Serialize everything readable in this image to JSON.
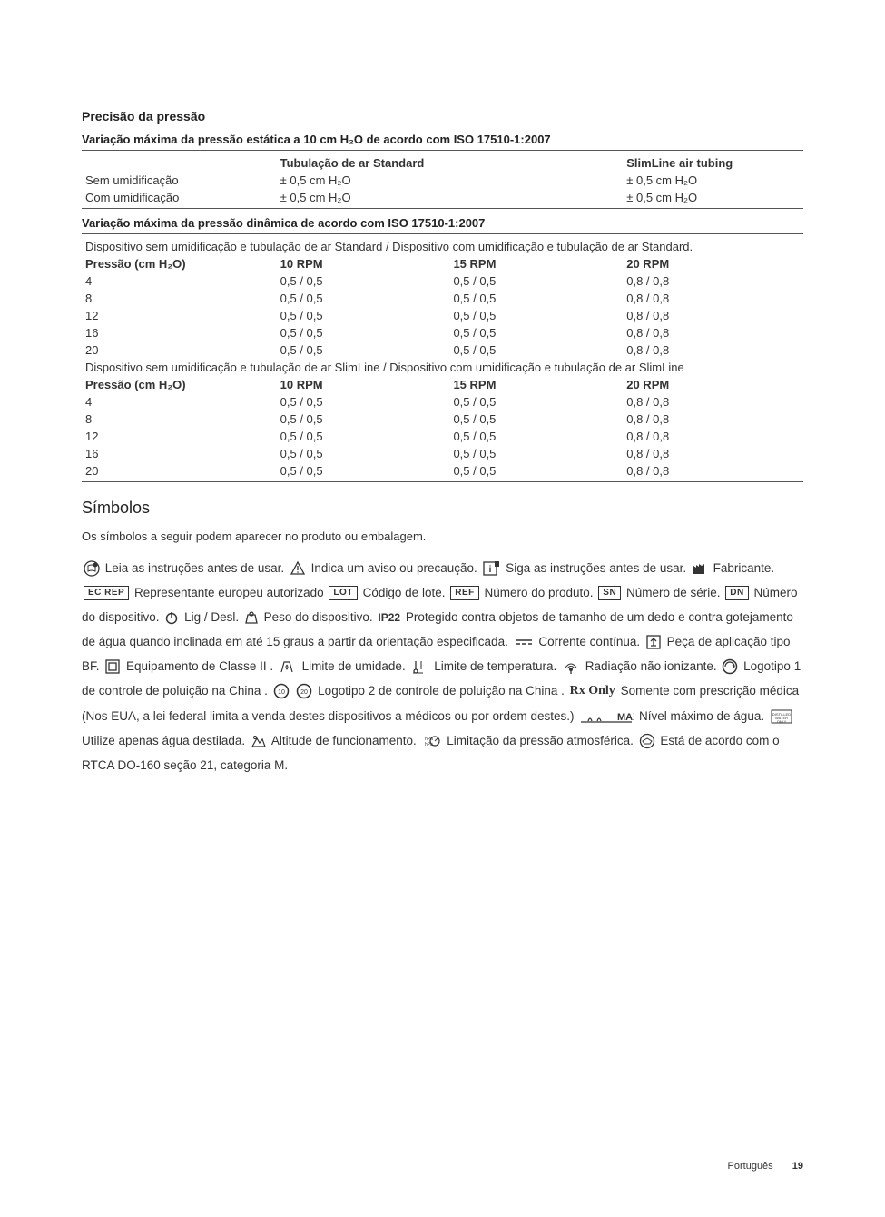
{
  "section_title": "Precisão da pressão",
  "static_title": "Variação máxima da pressão estática a 10 cm H₂O de acordo com ISO 17510-1:2007",
  "static_table": {
    "col_headers": [
      "",
      "Tubulação de ar Standard",
      "SlimLine air tubing"
    ],
    "rows": [
      [
        "Sem umidificação",
        "± 0,5 cm H₂O",
        "± 0,5 cm H₂O"
      ],
      [
        "Com umidificação",
        "± 0,5 cm H₂O",
        "± 0,5 cm H₂O"
      ]
    ]
  },
  "dynamic_title": "Variação máxima da pressão dinâmica de acordo com ISO 17510-1:2007",
  "dyn_note1": "Dispositivo sem umidificação e tubulação de ar Standard / Dispositivo com umidificação e tubulação de ar Standard.",
  "dyn_note2": "Dispositivo sem umidificação  e tubulação de ar SlimLine / Dispositivo com umidificação e tubulação de ar SlimLine",
  "dyn_headers": [
    "Pressão (cm H₂O)",
    "10 RPM",
    "15 RPM",
    "20 RPM"
  ],
  "dyn_rows1": [
    [
      "4",
      "0,5 / 0,5",
      "0,5 / 0,5",
      "0,8 / 0,8"
    ],
    [
      "8",
      "0,5 / 0,5",
      "0,5 / 0,5",
      "0,8 / 0,8"
    ],
    [
      "12",
      "0,5 / 0,5",
      "0,5 / 0,5",
      "0,8 / 0,8"
    ],
    [
      "16",
      "0,5 / 0,5",
      "0,5 / 0,5",
      "0,8 / 0,8"
    ],
    [
      "20",
      "0,5 / 0,5",
      "0,5 / 0,5",
      "0,8 / 0,8"
    ]
  ],
  "dyn_rows2": [
    [
      "4",
      "0,5 / 0,5",
      "0,5 / 0,5",
      "0,8 / 0,8"
    ],
    [
      "8",
      "0,5 / 0,5",
      "0,5 / 0,5",
      "0,8 / 0,8"
    ],
    [
      "12",
      "0,5 / 0,5",
      "0,5 / 0,5",
      "0,8 / 0,8"
    ],
    [
      "16",
      "0,5 / 0,5",
      "0,5 / 0,5",
      "0,8 / 0,8"
    ],
    [
      "20",
      "0,5 / 0,5",
      "0,5 / 0,5",
      "0,8 / 0,8"
    ]
  ],
  "symbols_title": "Símbolos",
  "symbols_intro": "Os símbolos a seguir podem aparecer no produto ou embalagem.",
  "symtext": {
    "t1": " Leia as instruções antes de usar. ",
    "t2": " Indica um aviso ou precaução. ",
    "t3": " Siga as instruções antes de usar. ",
    "t4": " Fabricante. ",
    "t5": " Representante europeu autorizado ",
    "t6": " Código de lote. ",
    "t7": " Número do produto. ",
    "t8": " Número de série. ",
    "t9": " Número do dispositivo. ",
    "t10": " Lig / Desl. ",
    "t11": " Peso do dispositivo. ",
    "t12": " Protegido contra objetos de tamanho de um dedo e contra gotejamento de água quando inclinada em até 15 graus a partir da orientação especificada. ",
    "t13": " Corrente contínua. ",
    "t14": " Peça de aplicação tipo BF. ",
    "t15": " Equipamento de Classe II .",
    "t16": " Limite de umidade. ",
    "t17": " Limite de temperatura. ",
    "t18": " Radiação não ionizante. ",
    "t19": " Logotipo 1 de controle de poluição na China . ",
    "t20": " Logotipo 2 de controle de poluição na China . ",
    "t21": " Somente com prescrição médica (Nos EUA, a lei federal limita a venda destes dispositivos a médicos ou por ordem destes.) ",
    "t22": " Nível máximo de água. ",
    "t23": " Utilize apenas água destilada. ",
    "t24": " Altitude de funcionamento. ",
    "t25": " Limitação da pressão atmosférica. ",
    "t26": " Está de acordo com o RTCA DO-160 seção 21, categoria M."
  },
  "labels": {
    "ecrep": "EC REP",
    "lot": "LOT",
    "ref": "REF",
    "sn": "SN",
    "dn": "DN",
    "ip22": "IP22",
    "rxonly": "Rx Only",
    "max": "MAX"
  },
  "footer": {
    "lang": "Português",
    "page": "19"
  }
}
